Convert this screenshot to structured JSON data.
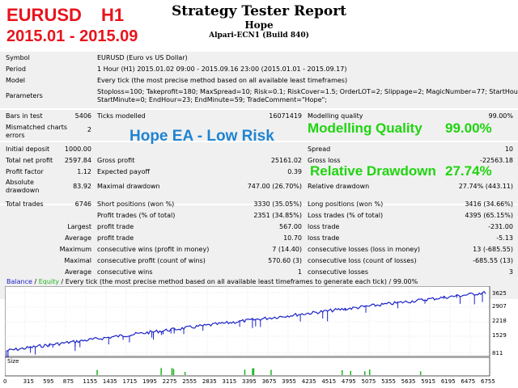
{
  "overlay": {
    "pair": "EURUSD",
    "timeframe": "H1",
    "date_range": "2015.01 - 2015.09",
    "ea_label": "Hope EA - Low Risk",
    "mq_label": "Modelling Quality",
    "mq_value": "99.00%",
    "dd_label": "Relative Drawdown",
    "dd_value": "27.74%"
  },
  "header": {
    "title": "Strategy Tester Report",
    "ea_name": "Hope",
    "server": "Alpari-ECN1 (Build 840)"
  },
  "info": {
    "symbol_label": "Symbol",
    "symbol_value": "EURUSD (Euro vs US Dollar)",
    "period_label": "Period",
    "period_value": "1 Hour (H1) 2015.01.02 09:00 - 2015.09.16 23:00 (2015.01.01 - 2015.09.17)",
    "model_label": "Model",
    "model_value": "Every tick (the most precise method based on all available least timeframes)",
    "params_label": "Parameters",
    "params_line1": "Stoploss=100; Takeprofit=180; MaxSpread=10; Risk=0.1; RiskCover=1.5; OrderLOT=2; Slippage=2; MagicNumber=77; StartHour=0;",
    "params_line2": "StartMinute=0; EndHour=23; EndMinute=59; TradeComment=\"Hope\";"
  },
  "stats": {
    "bars_label": "Bars in test",
    "bars_value": "5406",
    "ticks_label": "Ticks modelled",
    "ticks_value": "16071419",
    "mq_label": "Modelling quality",
    "mq_value": "99.00%",
    "mismatch_label1": "Mismatched charts",
    "mismatch_label2": "errors",
    "mismatch_value": "2",
    "deposit_label": "Initial deposit",
    "deposit_value": "1000.00",
    "spread_label": "Spread",
    "spread_value": "10",
    "netprofit_label": "Total net profit",
    "netprofit_value": "2597.84",
    "grossprofit_label": "Gross profit",
    "grossprofit_value": "25161.02",
    "grossloss_label": "Gross loss",
    "grossloss_value": "-22563.18",
    "pf_label": "Profit factor",
    "pf_value": "1.12",
    "ep_label": "Expected payoff",
    "ep_value": "0.39",
    "absdd_label1": "Absolute",
    "absdd_label2": "drawdown",
    "absdd_value": "83.92",
    "maxdd_label": "Maximal drawdown",
    "maxdd_value": "747.00 (26.70%)",
    "reldd_label": "Relative drawdown",
    "reldd_value": "27.74% (443.11)",
    "trades_label": "Total trades",
    "trades_value": "6746",
    "short_label": "Short positions (won %)",
    "short_value": "3330 (35.05%)",
    "long_label": "Long positions (won %)",
    "long_value": "3416 (34.66%)",
    "profit_trades_label": "Profit trades (% of total)",
    "profit_trades_value": "2351 (34.85%)",
    "loss_trades_label": "Loss trades (% of total)",
    "loss_trades_value": "4395 (65.15%)",
    "largest_label": "Largest",
    "largest_pt_label": "profit trade",
    "largest_pt_value": "567.00",
    "largest_lt_label": "loss trade",
    "largest_lt_value": "-231.00",
    "average_label": "Average",
    "average_pt_label": "profit trade",
    "average_pt_value": "10.70",
    "average_lt_label": "loss trade",
    "average_lt_value": "-5.13",
    "maximum_label": "Maximum",
    "max_cw_label": "consecutive wins (profit in money)",
    "max_cw_value": "7 (14.40)",
    "max_cl_label": "consecutive losses (loss in money)",
    "max_cl_value": "13 (-685.55)",
    "maximal_label": "Maximal",
    "maximal_cp_label": "consecutive profit (count of wins)",
    "maximal_cp_value": "570.60 (3)",
    "maximal_cl_label": "consecutive loss (count of losses)",
    "maximal_cl_value": "-685.55 (13)",
    "avgc_label": "Average",
    "avgc_w_label": "consecutive wins",
    "avgc_w_value": "1",
    "avgc_l_label": "consecutive losses",
    "avgc_l_value": "3"
  },
  "chart": {
    "legend_balance": "Balance",
    "legend_sep": " / ",
    "legend_equity": "Equity",
    "legend_rest": " / Every tick (the most precise method based on all available least timeframes to generate each tick) / 99.00%",
    "size_label": "Size",
    "y_ticks": [
      "3625",
      "2907",
      "2218",
      "1529",
      "811"
    ],
    "x_ticks": [
      "0",
      "315",
      "595",
      "875",
      "1155",
      "1435",
      "1715",
      "1995",
      "2275",
      "2555",
      "2835",
      "3115",
      "3395",
      "3675",
      "3955",
      "4235",
      "4515",
      "4795",
      "5075",
      "5355",
      "5635",
      "5915",
      "6195",
      "6475",
      "6755"
    ],
    "balance_color": "#1b22c8",
    "equity_color": "#1fb51f"
  }
}
